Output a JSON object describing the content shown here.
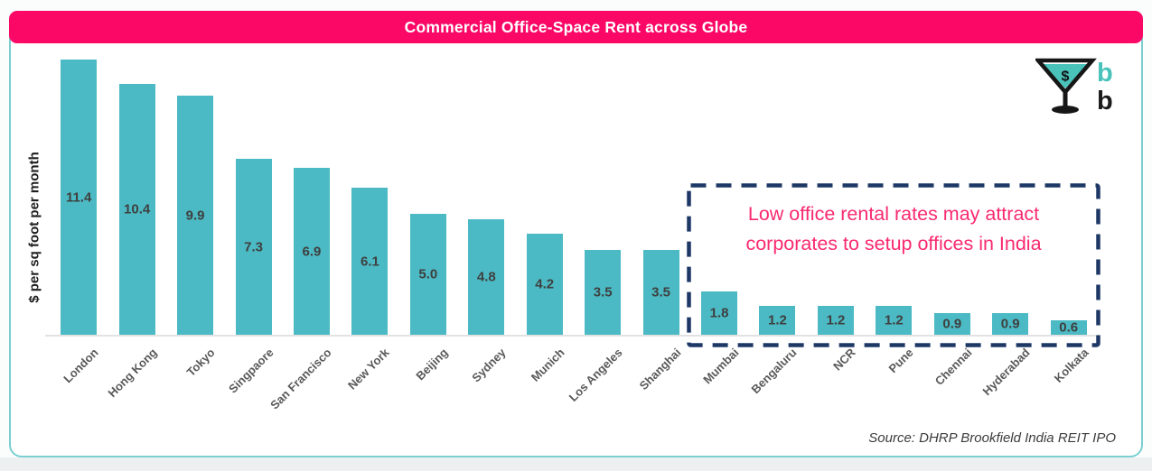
{
  "header": {
    "title": "Commercial Office-Space Rent across Globe"
  },
  "footer": {
    "source": "Source: DHRP Brookfield India REIT IPO"
  },
  "annotation": {
    "line1": "Low office rental rates may attract",
    "line2": "corporates to setup offices in India"
  },
  "logo": {
    "dollar_sign": "$",
    "letter_b_top": "b",
    "letter_b_bottom": "b"
  },
  "colors": {
    "header_bg": "#fb0766",
    "bar": "#4bbac4",
    "annotation_text": "#f92a70",
    "annotation_border": "#1e3866",
    "card_border": "#7bcfd1",
    "value_label": "#3f3f3f",
    "axis_label": "#595959",
    "logo_teal": "#49c3ba"
  },
  "chart_data": {
    "type": "bar",
    "title": "Commercial Office-Space Rent across Globe",
    "xlabel": "",
    "ylabel": "$ per sq foot per month",
    "categories": [
      "London",
      "Hong Kong",
      "Tokyo",
      "Singpaore",
      "San Francisco",
      "New York",
      "Beijing",
      "Sydney",
      "Munich",
      "Los Angeles",
      "Shanghai",
      "Mumbai",
      "Bengaluru",
      "NCR",
      "Pune",
      "Chennai",
      "Hyderabad",
      "Kolkata"
    ],
    "values": [
      11.4,
      10.4,
      9.9,
      7.3,
      6.9,
      6.1,
      5.0,
      4.8,
      4.2,
      3.5,
      3.5,
      1.8,
      1.2,
      1.2,
      1.2,
      0.9,
      0.9,
      0.6
    ],
    "ylim": [
      0,
      12
    ],
    "grid": false,
    "legend": "none",
    "data_labels": "inside-center",
    "x_tick_rotation_deg": 45,
    "highlighted_group": {
      "categories": [
        "Mumbai",
        "Bengaluru",
        "NCR",
        "Pune",
        "Chennai",
        "Hyderabad",
        "Kolkata"
      ],
      "annotation": "Low office rental rates may attract corporates to setup offices in India",
      "style": "navy-dashed-box"
    },
    "source": "Source: DHRP Brookfield India REIT IPO"
  }
}
